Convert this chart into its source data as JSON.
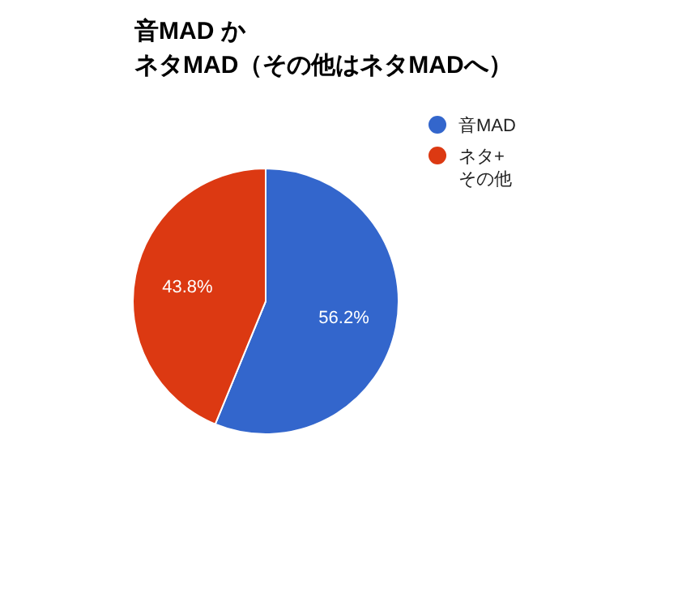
{
  "chart_data": {
    "type": "pie",
    "title": "音MAD かネタMAD（その他はネタMADへ）",
    "categories": [
      "音MAD",
      "ネタ+その他"
    ],
    "values": [
      56.2,
      43.8
    ],
    "colors": [
      "#3366cc",
      "#dc3912"
    ],
    "value_labels": [
      "56.2%",
      "43.8%"
    ],
    "legend": "top right"
  }
}
